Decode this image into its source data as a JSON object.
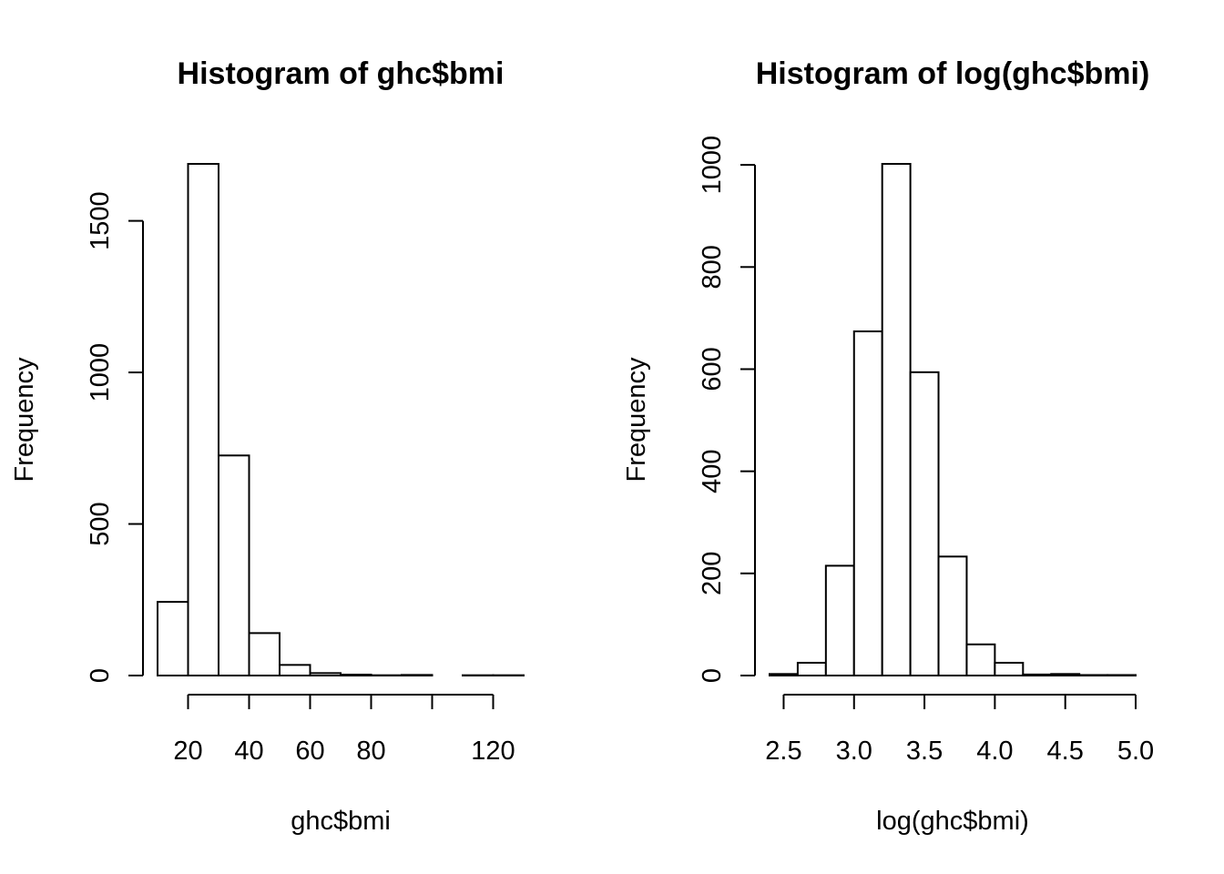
{
  "chart_data": [
    {
      "type": "bar",
      "title": "Histogram of ghc$bmi",
      "xlabel": "ghc$bmi",
      "ylabel": "Frequency",
      "bin_edges": [
        10,
        20,
        30,
        40,
        50,
        60,
        70,
        80,
        90,
        100,
        110,
        120,
        130
      ],
      "values": [
        243,
        1688,
        726,
        140,
        35,
        8,
        3,
        1,
        2,
        0,
        1,
        1
      ],
      "xlim": [
        10,
        130
      ],
      "ylim": [
        0,
        1688
      ],
      "xticks": [
        20,
        40,
        60,
        80,
        100,
        120
      ],
      "xtick_labels": [
        "20",
        "40",
        "60",
        "80",
        "",
        "120"
      ],
      "yticks": [
        0,
        500,
        1000,
        1500
      ],
      "ytick_labels": [
        "0",
        "500",
        "1000",
        "1500"
      ]
    },
    {
      "type": "bar",
      "title": "Histogram of log(ghc$bmi)",
      "xlabel": "log(ghc$bmi)",
      "ylabel": "Frequency",
      "bin_edges": [
        2.4,
        2.6,
        2.8,
        3.0,
        3.2,
        3.4,
        3.6,
        3.8,
        4.0,
        4.2,
        4.4,
        4.6,
        4.8,
        5.0
      ],
      "values": [
        3,
        25,
        215,
        674,
        1002,
        594,
        233,
        61,
        25,
        2,
        3,
        1,
        1
      ],
      "xlim": [
        2.4,
        5.0
      ],
      "ylim": [
        0,
        1002
      ],
      "xticks": [
        2.5,
        3.0,
        3.5,
        4.0,
        4.5,
        5.0
      ],
      "xtick_labels": [
        "2.5",
        "3.0",
        "3.5",
        "4.0",
        "4.5",
        "5.0"
      ],
      "yticks": [
        0,
        200,
        400,
        600,
        800,
        1000
      ],
      "ytick_labels": [
        "0",
        "200",
        "400",
        "600",
        "800",
        "1000"
      ]
    }
  ]
}
